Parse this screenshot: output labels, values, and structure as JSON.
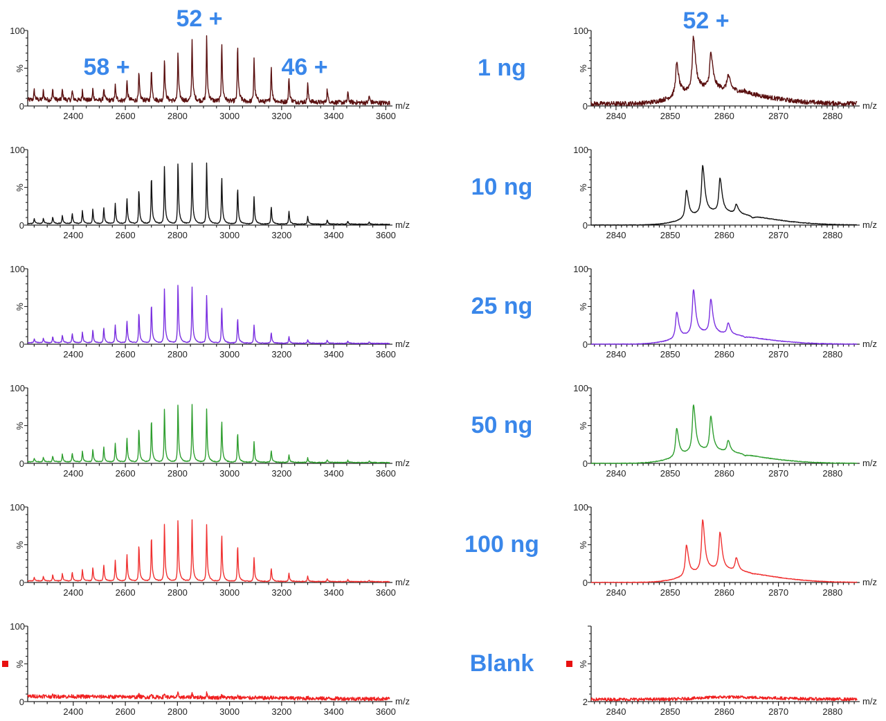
{
  "chart_data": {
    "type": "line",
    "annotations": {
      "left_top_charge": "52 +",
      "left_low_charge": "58 +",
      "left_high_charge": "46 +",
      "right_top_charge": "52 +"
    },
    "xlabel": "m/z",
    "ylabel": "%",
    "left_axis": {
      "xlim": [
        2225,
        3615
      ],
      "xticks": [
        2400,
        2600,
        2800,
        3000,
        3200,
        3400,
        3600
      ],
      "ylim": [
        0,
        100
      ],
      "yticks": [
        "100",
        "0"
      ]
    },
    "right_axis": {
      "xlim": [
        2835.4,
        2884.5
      ],
      "xticks": [
        2840,
        2850,
        2860,
        2870,
        2880
      ],
      "ylim": [
        0,
        100
      ],
      "yticks": [
        "100",
        "0"
      ]
    },
    "peak_mz": [
      2250,
      2285,
      2321,
      2358,
      2396,
      2435,
      2475,
      2517,
      2561,
      2606,
      2652,
      2700,
      2750,
      2802,
      2856,
      2912,
      2970,
      3031,
      3094,
      3160,
      3228,
      3300,
      3375,
      3454,
      3536
    ],
    "panels": [
      {
        "label": "1 ng",
        "color": "#5a1010",
        "left": {
          "baseline": 8,
          "noise": 3,
          "y": [
            13,
            12,
            14,
            14,
            13,
            14,
            15,
            17,
            20,
            27,
            37,
            44,
            56,
            66,
            84,
            85,
            80,
            75,
            59,
            48,
            34,
            25,
            18,
            14,
            10
          ]
        },
        "right": {
          "baseline": 3,
          "envelope": 20,
          "noise": 3,
          "x": [
            2851.2,
            2854.3,
            2857.5,
            2860.7,
            2863.8
          ],
          "y": [
            58,
            85,
            62,
            35,
            18
          ]
        }
      },
      {
        "label": "10 ng",
        "color": "#111111",
        "left": {
          "baseline": 2,
          "noise": 0.5,
          "y": [
            7,
            7,
            9,
            11,
            14,
            17,
            19,
            22,
            27,
            34,
            45,
            63,
            76,
            81,
            81,
            81,
            63,
            48,
            36,
            23,
            17,
            10,
            6,
            4,
            3
          ]
        },
        "right": {
          "baseline": 0,
          "envelope": 16,
          "noise": 0.4,
          "x": [
            2853.0,
            2856.0,
            2859.2,
            2862.2,
            2865.2
          ],
          "y": [
            50,
            76,
            58,
            25,
            10
          ]
        }
      },
      {
        "label": "25 ng",
        "color": "#7a2fe0",
        "left": {
          "baseline": 2,
          "noise": 0.5,
          "y": [
            5,
            6,
            8,
            10,
            12,
            14,
            17,
            20,
            24,
            30,
            40,
            53,
            72,
            78,
            75,
            63,
            48,
            33,
            24,
            14,
            9,
            5,
            4,
            3,
            2
          ]
        },
        "right": {
          "baseline": 0,
          "envelope": 14,
          "noise": 0.4,
          "x": [
            2851.2,
            2854.3,
            2857.5,
            2860.7,
            2863.8
          ],
          "y": [
            46,
            70,
            56,
            26,
            10
          ]
        }
      },
      {
        "label": "50 ng",
        "color": "#2e9e2e",
        "left": {
          "baseline": 2,
          "noise": 0.5,
          "y": [
            5,
            6,
            8,
            10,
            12,
            14,
            17,
            20,
            25,
            32,
            45,
            57,
            70,
            77,
            77,
            70,
            56,
            40,
            27,
            16,
            10,
            6,
            4,
            3,
            2
          ]
        },
        "right": {
          "baseline": 0,
          "envelope": 16,
          "noise": 0.4,
          "x": [
            2851.2,
            2854.3,
            2857.5,
            2860.7,
            2863.8
          ],
          "y": [
            50,
            75,
            58,
            28,
            11
          ]
        }
      },
      {
        "label": "100 ng",
        "color": "#f03030",
        "left": {
          "baseline": 2,
          "noise": 0.5,
          "y": [
            5,
            6,
            8,
            10,
            12,
            15,
            18,
            22,
            28,
            36,
            48,
            60,
            75,
            82,
            82,
            75,
            63,
            48,
            32,
            18,
            11,
            7,
            4,
            3,
            2
          ]
        },
        "right": {
          "baseline": 0,
          "envelope": 16,
          "noise": 0.4,
          "x": [
            2853.0,
            2856.0,
            2859.2,
            2862.2,
            2865.2
          ],
          "y": [
            53,
            80,
            62,
            30,
            12
          ]
        }
      },
      {
        "label": "Blank",
        "color": "#f02020",
        "marker_color": "#e81010",
        "left": {
          "baseline": 7,
          "noise": 2.5,
          "y": [
            1,
            1,
            1,
            1,
            1,
            1,
            1,
            1,
            1,
            2,
            3,
            4,
            5,
            5,
            6,
            6,
            4,
            3,
            2,
            2,
            1,
            1,
            0,
            0,
            0
          ]
        },
        "right": {
          "baseline": 3,
          "envelope": 3,
          "noise": 2,
          "x": [],
          "y": []
        },
        "right_yticks": [
          "",
          "2"
        ]
      }
    ]
  }
}
